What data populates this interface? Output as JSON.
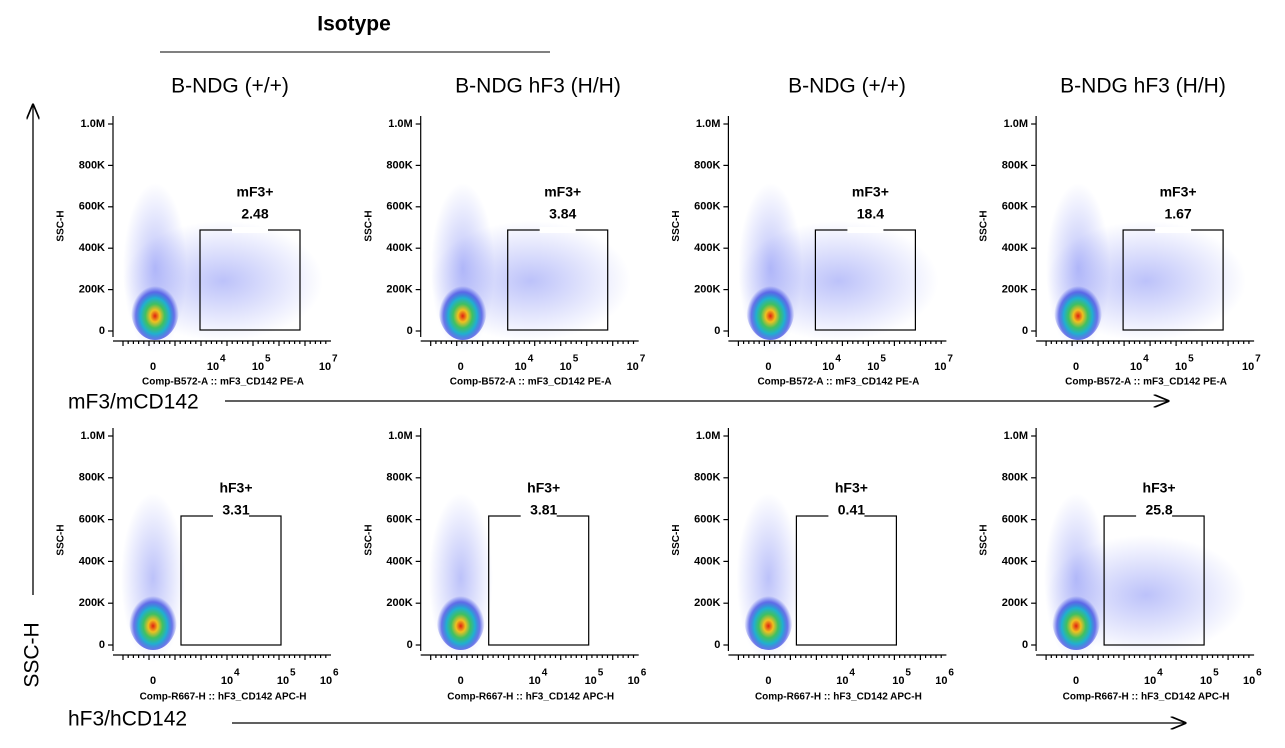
{
  "header": {
    "title": "Isotype",
    "columns": [
      "B-NDG (+/+)",
      "B-NDG hF3 (H/H)",
      "B-NDG (+/+)",
      "B-NDG hF3 (H/H)"
    ]
  },
  "y_axis": {
    "label": "SSC-H",
    "panel_label": "SSC-H",
    "ticks": [
      "1.0M",
      "800K",
      "600K",
      "400K",
      "200K",
      "0"
    ]
  },
  "rows": [
    {
      "axis_label": "mF3/mCD142",
      "x_title": "Comp-B572-A :: mF3_CD142 PE-A",
      "x_ticks": [
        {
          "base": "0",
          "exp": ""
        },
        {
          "base": "10",
          "exp": "4"
        },
        {
          "base": "10",
          "exp": "5"
        },
        {
          "base": "10",
          "exp": "7"
        }
      ],
      "panels": [
        {
          "gate": "mF3+",
          "percent": 2.48
        },
        {
          "gate": "mF3+",
          "percent": 3.84
        },
        {
          "gate": "mF3+",
          "percent": 18.4
        },
        {
          "gate": "mF3+",
          "percent": 1.67
        }
      ]
    },
    {
      "axis_label": "hF3/hCD142",
      "x_title": "Comp-R667-H :: hF3_CD142 APC-H",
      "x_ticks": [
        {
          "base": "0",
          "exp": ""
        },
        {
          "base": "10",
          "exp": "4"
        },
        {
          "base": "10",
          "exp": "5"
        },
        {
          "base": "10",
          "exp": "6"
        }
      ],
      "panels": [
        {
          "gate": "hF3+",
          "percent": 3.31
        },
        {
          "gate": "hF3+",
          "percent": 3.81
        },
        {
          "gate": "hF3+",
          "percent": 0.41
        },
        {
          "gate": "hF3+",
          "percent": 25.8
        }
      ]
    }
  ]
}
